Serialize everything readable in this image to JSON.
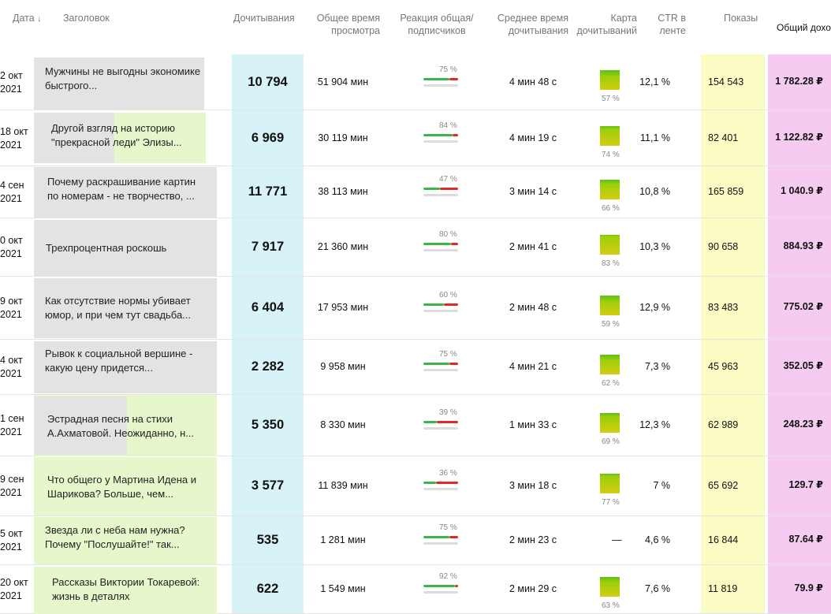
{
  "headers": {
    "date": "Дата",
    "date_sort": "↓",
    "title": "Заголовок",
    "reads": "Дочитывания",
    "total_time": "Общее время просмотра",
    "reaction": "Реакция общая/ подписчиков",
    "avg_time": "Среднее время дочитывания",
    "read_map": "Карта дочитываний",
    "ctr": "CTR в ленте",
    "shows": "Показы",
    "income": "Общий дохо"
  },
  "colors": {
    "reads_column": "#d8f3f7",
    "shows_column": "#fbfbc4",
    "income_column": "#f6cbf1",
    "bar_green": "#3cb648",
    "bar_red": "#e02a2a"
  },
  "rows": [
    {
      "date": "2 окт 2021",
      "title": "Мужчины не выгодны экономике быстрого...",
      "reads": "10 794",
      "total_time": "51 904 мин",
      "reaction_pct": "75 %",
      "reaction_value": 75,
      "avg_time": "4 мин 48 с",
      "map_pct": "57 %",
      "map_value": 57,
      "ctr": "12,1 %",
      "shows": "154 543",
      "income": "1 782.28 ₽"
    },
    {
      "date": "18 окт 2021",
      "title": "Другой взгляд на историю \"прекрасной леди\" Элизы...",
      "reads": "6 969",
      "total_time": "30 119 мин",
      "reaction_pct": "84 %",
      "reaction_value": 84,
      "avg_time": "4 мин 19 с",
      "map_pct": "74 %",
      "map_value": 74,
      "ctr": "11,1 %",
      "shows": "82 401",
      "income": "1 122.82 ₽"
    },
    {
      "date": "4 сен 2021",
      "title": "Почему раскрашивание картин по номерам - не творчество, ...",
      "reads": "11 771",
      "total_time": "38 113 мин",
      "reaction_pct": "47 %",
      "reaction_value": 47,
      "avg_time": "3 мин 14 с",
      "map_pct": "66 %",
      "map_value": 66,
      "ctr": "10,8 %",
      "shows": "165 859",
      "income": "1 040.9 ₽"
    },
    {
      "date": "0 окт 2021",
      "title": "Трехпроцентная роскошь",
      "reads": "7 917",
      "total_time": "21 360 мин",
      "reaction_pct": "80 %",
      "reaction_value": 80,
      "avg_time": "2 мин 41 с",
      "map_pct": "83 %",
      "map_value": 83,
      "ctr": "10,3 %",
      "shows": "90 658",
      "income": "884.93 ₽"
    },
    {
      "date": "9 окт 2021",
      "title": "Как отсутствие нормы убивает юмор, и при чем тут свадьба...",
      "reads": "6 404",
      "total_time": "17 953 мин",
      "reaction_pct": "60 %",
      "reaction_value": 60,
      "avg_time": "2 мин 48 с",
      "map_pct": "59 %",
      "map_value": 59,
      "ctr": "12,9 %",
      "shows": "83 483",
      "income": "775.02 ₽"
    },
    {
      "date": "4 окт 2021",
      "title": "Рывок к социальной вершине - какую цену придется...",
      "reads": "2 282",
      "total_time": "9 958 мин",
      "reaction_pct": "75 %",
      "reaction_value": 75,
      "avg_time": "4 мин 21 с",
      "map_pct": "62 %",
      "map_value": 62,
      "ctr": "7,3 %",
      "shows": "45 963",
      "income": "352.05 ₽"
    },
    {
      "date": "1 сен 2021",
      "title": "Эстрадная песня на стихи А.Ахматовой. Неожиданно, н...",
      "reads": "5 350",
      "total_time": "8 330 мин",
      "reaction_pct": "39 %",
      "reaction_value": 39,
      "avg_time": "1 мин 33 с",
      "map_pct": "69 %",
      "map_value": 69,
      "ctr": "12,3 %",
      "shows": "62 989",
      "income": "248.23 ₽"
    },
    {
      "date": "9 сен 2021",
      "title": "Что общего у Мартина Идена и Шарикова? Больше, чем...",
      "reads": "3 577",
      "total_time": "11 839 мин",
      "reaction_pct": "36 %",
      "reaction_value": 36,
      "avg_time": "3 мин 18 с",
      "map_pct": "77 %",
      "map_value": 77,
      "ctr": "7 %",
      "shows": "65 692",
      "income": "129.7 ₽"
    },
    {
      "date": "5 окт 2021",
      "title": "Звезда ли с неба нам нужна? Почему \"Послушайте!\" так...",
      "reads": "535",
      "total_time": "1 281 мин",
      "reaction_pct": "75 %",
      "reaction_value": 75,
      "avg_time": "2 мин 23 с",
      "map_pct": "",
      "map_value": null,
      "map_dash": "—",
      "ctr": "4,6 %",
      "shows": "16 844",
      "income": "87.64 ₽"
    },
    {
      "date": "20 окт 2021",
      "title": "Рассказы Виктории Токаревой: жизнь в деталях",
      "reads": "622",
      "total_time": "1 549 мин",
      "reaction_pct": "92 %",
      "reaction_value": 92,
      "avg_time": "2 мин 29 с",
      "map_pct": "63 %",
      "map_value": 63,
      "ctr": "7,6 %",
      "shows": "11 819",
      "income": "79.9 ₽"
    }
  ]
}
